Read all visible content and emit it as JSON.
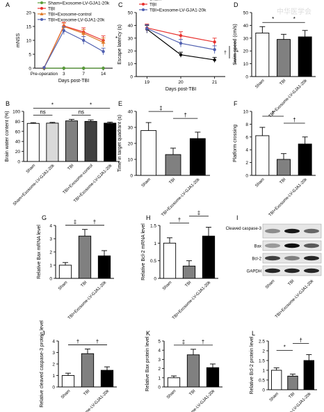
{
  "watermark": "中华医学会",
  "colors": {
    "sham": "#ffffff",
    "sham_ctrl": "#d9d9d9",
    "tbi": "#808080",
    "tbi_ctrl": "#404040",
    "tbi_lv": "#000000",
    "red": "#e8302d",
    "blue": "#5060b0",
    "green": "#5a9e3a",
    "orange": "#e07b2a"
  },
  "chart_data": [
    {
      "panel": "A",
      "type": "line",
      "xlabel": "Days post-TBI",
      "ylabel": "mNSS",
      "ylim": [
        0,
        20
      ],
      "yticks": [
        0,
        5,
        10,
        15,
        20
      ],
      "categories": [
        "Pre-operation",
        "3",
        "7",
        "14"
      ],
      "legend": [
        "Sham",
        "Sham+Exosome-LV-GJA1-20k",
        "TBI",
        "TBI+Exosome-control",
        "TBI+Exosome-LV-GJA1-20k"
      ],
      "series": [
        {
          "name": "Sham",
          "color": "#000000",
          "marker": "circle",
          "values": [
            0,
            0,
            0,
            0
          ],
          "err": [
            0,
            0,
            0,
            0
          ]
        },
        {
          "name": "Sham+Exosome-LV-GJA1-20k",
          "color": "#5a9e3a",
          "marker": "circle",
          "values": [
            0,
            0,
            0,
            0
          ],
          "err": [
            0,
            0,
            0,
            0
          ]
        },
        {
          "name": "TBI",
          "color": "#e8302d",
          "marker": "circle",
          "values": [
            0.2,
            15.2,
            13,
            10
          ],
          "err": [
            0,
            1.3,
            1.5,
            1.6
          ]
        },
        {
          "name": "TBI+Exosome-control",
          "color": "#e07b2a",
          "marker": "triangle",
          "values": [
            0.2,
            15,
            12.5,
            9.3
          ],
          "err": [
            0,
            1.2,
            1.4,
            1.6
          ]
        },
        {
          "name": "TBI+Exosome-LV-GJA1-20k",
          "color": "#5060b0",
          "marker": "circle",
          "values": [
            0.2,
            13.5,
            10,
            6
          ],
          "err": [
            0,
            1.4,
            1.4,
            1.2
          ]
        }
      ],
      "annotations": [
        "*"
      ]
    },
    {
      "panel": "B",
      "type": "bar",
      "ylabel": "Brain water content (%)",
      "ylim": [
        0,
        100
      ],
      "yticks": [
        0,
        20,
        40,
        60,
        80,
        100
      ],
      "categories": [
        "Sham",
        "Sham+Exosome-LV-GJA1-20k",
        "TBI",
        "TBI+Exosome-control",
        "TBI+Exosome-LV-GJA1-20k"
      ],
      "values": [
        76,
        76.5,
        81,
        80,
        76.5
      ],
      "err": [
        1.5,
        1.5,
        3,
        3,
        2
      ],
      "colors": [
        "#ffffff",
        "#d9d9d9",
        "#808080",
        "#404040",
        "#000000"
      ],
      "annotations": [
        "ns",
        "ns",
        "*",
        "*"
      ]
    },
    {
      "panel": "C",
      "type": "line",
      "xlabel": "Days post-TBI",
      "ylabel": "Escape latency (s)",
      "ylim": [
        0,
        50
      ],
      "yticks": [
        0,
        10,
        20,
        30,
        40,
        50
      ],
      "categories": [
        "19",
        "20",
        "21"
      ],
      "legend": [
        "Sham",
        "TBI",
        "TBI+Exosome-LV-GJA1-20k"
      ],
      "series": [
        {
          "name": "Sham",
          "color": "#000000",
          "marker": "circle",
          "values": [
            37,
            17,
            13
          ],
          "err": [
            3,
            2,
            2
          ]
        },
        {
          "name": "TBI",
          "color": "#e8302d",
          "marker": "circle",
          "values": [
            38,
            32,
            27
          ],
          "err": [
            3,
            3,
            3
          ]
        },
        {
          "name": "TBI+Exosome-LV-GJA1-20k",
          "color": "#5060b0",
          "marker": "circle",
          "values": [
            37.5,
            26,
            21
          ],
          "err": [
            3,
            3,
            3
          ]
        }
      ],
      "annotations": [
        "†",
        "*"
      ]
    },
    {
      "panel": "D",
      "type": "bar",
      "ylabel": "Swim speed (cm/s)",
      "ylim": [
        0,
        50
      ],
      "yticks": [
        0,
        10,
        20,
        30,
        40,
        50
      ],
      "categories": [
        "Sham",
        "TBI",
        "TBI+Exosome-LV-GJA1-20k"
      ],
      "values": [
        34,
        29,
        31
      ],
      "err": [
        5,
        4,
        5
      ],
      "colors": [
        "#ffffff",
        "#808080",
        "#000000"
      ],
      "annotations": [
        "*",
        "*"
      ]
    },
    {
      "panel": "E",
      "type": "bar",
      "ylabel": "Time in target quadrant (s)",
      "ylim": [
        0,
        40
      ],
      "yticks": [
        0,
        10,
        20,
        30,
        40
      ],
      "categories": [
        "Sham",
        "TBI",
        "TBI+Exosome-LV-GJA1-20k"
      ],
      "values": [
        28,
        13,
        23
      ],
      "err": [
        5,
        4,
        4
      ],
      "colors": [
        "#ffffff",
        "#808080",
        "#000000"
      ],
      "annotations": [
        "‡",
        "†"
      ]
    },
    {
      "panel": "F",
      "type": "bar",
      "ylabel": "Platform crossing",
      "ylim": [
        0,
        10
      ],
      "yticks": [
        0,
        2,
        4,
        6,
        8,
        10
      ],
      "categories": [
        "Sham",
        "TBI",
        "TBI+Exosome-LV-GJA1-20k"
      ],
      "values": [
        6.2,
        2.5,
        4.9
      ],
      "err": [
        1.3,
        0.9,
        1.1
      ],
      "colors": [
        "#ffffff",
        "#808080",
        "#000000"
      ],
      "annotations": [
        "†",
        "†"
      ]
    },
    {
      "panel": "G",
      "type": "bar",
      "ylabel": "Relative Bax mRNA level",
      "ylim": [
        0,
        4
      ],
      "yticks": [
        0,
        1,
        2,
        3,
        4
      ],
      "categories": [
        "Sham",
        "TBI",
        "TBI+Exosome-LV-GJA1-20k"
      ],
      "values": [
        1,
        3.2,
        1.7
      ],
      "err": [
        0.2,
        0.5,
        0.4
      ],
      "colors": [
        "#ffffff",
        "#808080",
        "#000000"
      ],
      "annotations": [
        "‡",
        "†"
      ]
    },
    {
      "panel": "H",
      "type": "bar",
      "ylabel": "Relative Bcl-2 mRNA level",
      "ylim": [
        0,
        1.5
      ],
      "yticks": [
        0,
        0.5,
        1.0,
        1.5
      ],
      "categories": [
        "Sham",
        "TBI",
        "TBI+Exosome-LV-GJA1-20k"
      ],
      "values": [
        1,
        0.35,
        1.2
      ],
      "err": [
        0.15,
        0.15,
        0.25
      ],
      "colors": [
        "#ffffff",
        "#808080",
        "#000000"
      ],
      "annotations": [
        "†",
        "‡"
      ]
    },
    {
      "panel": "J",
      "type": "bar",
      "ylabel": "Relative cleaved caspase-3 protein level",
      "ylim": [
        0,
        4
      ],
      "yticks": [
        0,
        1,
        2,
        3,
        4
      ],
      "categories": [
        "Sham",
        "TBI",
        "TBI+Exosome-LV-GJA1-20k"
      ],
      "values": [
        1,
        2.9,
        1.45
      ],
      "err": [
        0.2,
        0.4,
        0.3
      ],
      "colors": [
        "#ffffff",
        "#808080",
        "#000000"
      ],
      "annotations": [
        "†",
        "†"
      ]
    },
    {
      "panel": "K",
      "type": "bar",
      "ylabel": "Relative Bax protein level",
      "ylim": [
        0,
        5
      ],
      "yticks": [
        0,
        1,
        2,
        3,
        4,
        5
      ],
      "categories": [
        "Sham",
        "TBI",
        "TBI+Exosome-LV-GJA1-20k"
      ],
      "values": [
        1,
        3.5,
        2.1
      ],
      "err": [
        0.2,
        0.6,
        0.4
      ],
      "colors": [
        "#ffffff",
        "#808080",
        "#000000"
      ],
      "annotations": [
        "‡",
        "†"
      ]
    },
    {
      "panel": "L",
      "type": "bar",
      "ylabel": "Relative Bcl-2 protein level",
      "ylim": [
        0,
        2.5
      ],
      "yticks": [
        0,
        0.5,
        1.0,
        1.5,
        2.0,
        2.5
      ],
      "categories": [
        "Sham",
        "TBI",
        "TBI+Exosome-LV-GJA1-20k"
      ],
      "values": [
        1,
        0.7,
        1.5
      ],
      "err": [
        0.12,
        0.1,
        0.3
      ],
      "colors": [
        "#ffffff",
        "#808080",
        "#000000"
      ],
      "annotations": [
        "*",
        "†"
      ]
    }
  ],
  "blot": {
    "panel": "I",
    "rows": [
      "Cleaved caspase-3",
      "Bax",
      "Bcl-2",
      "GAPDH"
    ],
    "lanes": [
      "Sham",
      "TBI",
      "TBI+Exosome-LV-GJA1-20k"
    ],
    "intensity": [
      [
        0.45,
        0.9,
        0.6
      ],
      [
        0.4,
        0.95,
        0.65
      ],
      [
        0.75,
        0.5,
        0.85
      ],
      [
        0.85,
        0.85,
        0.85
      ]
    ]
  }
}
